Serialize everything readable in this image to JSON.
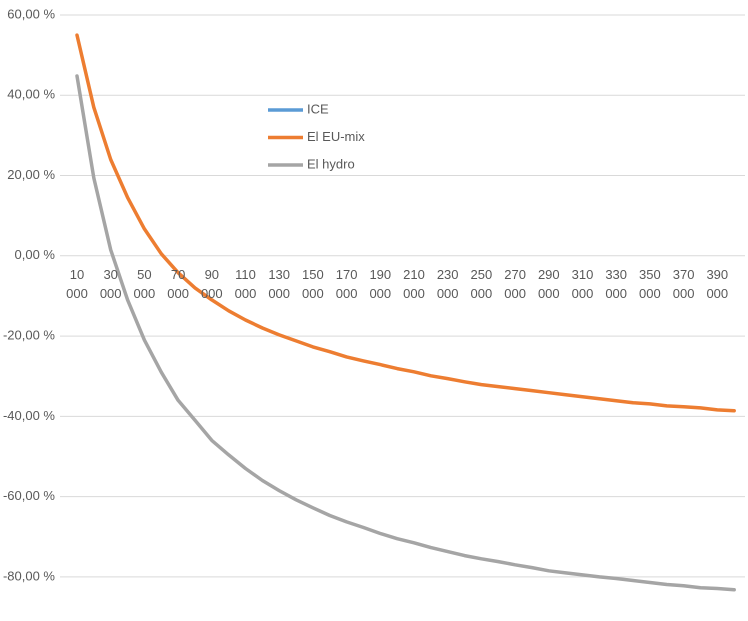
{
  "chart_data": {
    "type": "line",
    "categories": [
      "10 000",
      null,
      "30 000",
      null,
      "50 000",
      null,
      "70 000",
      null,
      "90 000",
      null,
      "110 000",
      null,
      "130 000",
      null,
      "150 000",
      null,
      "170 000",
      null,
      "190 000",
      null,
      "210 000",
      null,
      "230 000",
      null,
      "250 000",
      null,
      "270 000",
      null,
      "290 000",
      null,
      "310 000",
      null,
      "330 000",
      null,
      "350 000",
      null,
      "370 000",
      null,
      "390 000",
      null
    ],
    "series": [
      {
        "name": "ICE",
        "color": "#5b9bd5",
        "values": [
          null,
          null,
          null,
          null,
          null,
          null,
          null,
          null,
          null,
          null,
          null,
          null,
          null,
          null,
          null,
          null,
          null,
          null,
          null,
          null,
          null,
          null,
          null,
          null,
          null,
          null,
          null,
          null,
          null,
          null,
          null,
          null,
          null,
          null,
          null,
          null,
          null,
          null,
          null,
          null
        ]
      },
      {
        "name": "El EU-mix",
        "color": "#ed7d31",
        "values": [
          55,
          37,
          24,
          14.5,
          6.7,
          0.5,
          -4.2,
          -8,
          -11,
          -13.7,
          -16,
          -18,
          -19.7,
          -21.2,
          -22.7,
          -23.9,
          -25.2,
          -26.2,
          -27.1,
          -28.1,
          -28.9,
          -29.9,
          -30.6,
          -31.4,
          -32.1,
          -32.6,
          -33.1,
          -33.6,
          -34.1,
          -34.6,
          -35.1,
          -35.6,
          -36.1,
          -36.6,
          -36.9,
          -37.4,
          -37.6,
          -37.9,
          -38.4,
          -38.6
        ]
      },
      {
        "name": "El hydro",
        "color": "#a5a5a5",
        "values": [
          44.8,
          19.4,
          1.5,
          -11,
          -21,
          -29,
          -36,
          -41,
          -46,
          -49.6,
          -53,
          -56,
          -58.5,
          -60.8,
          -62.8,
          -64.7,
          -66.3,
          -67.7,
          -69.2,
          -70.5,
          -71.5,
          -72.7,
          -73.7,
          -74.7,
          -75.5,
          -76.2,
          -77,
          -77.7,
          -78.5,
          -79,
          -79.5,
          -80,
          -80.4,
          -80.9,
          -81.4,
          -81.9,
          -82.2,
          -82.7,
          -82.9,
          -83.2
        ]
      }
    ],
    "ylim": [
      -90,
      60
    ],
    "yticks": [
      {
        "value": -80,
        "label": "-80,00 %"
      },
      {
        "value": -60,
        "label": "-60,00 %"
      },
      {
        "value": -40,
        "label": "-40,00 %"
      },
      {
        "value": -20,
        "label": "-20,00 %"
      },
      {
        "value": 0,
        "label": "0,00 %"
      },
      {
        "value": 20,
        "label": "20,00 %"
      },
      {
        "value": 40,
        "label": "40,00 %"
      },
      {
        "value": 60,
        "label": "60,00 %"
      }
    ],
    "grid": true
  }
}
